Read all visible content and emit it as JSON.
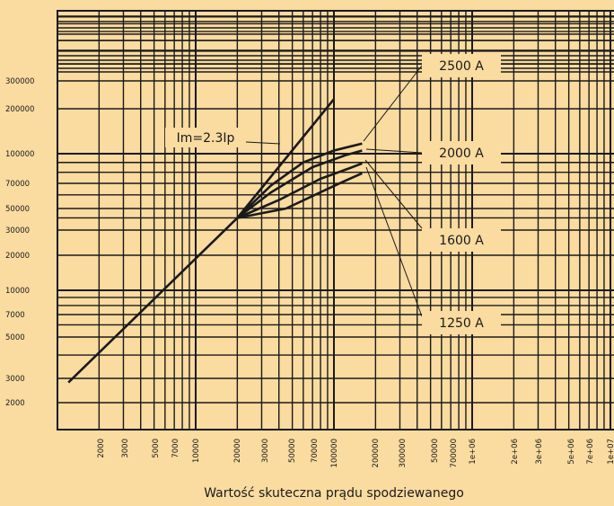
{
  "chart_data": {
    "type": "line",
    "title": "",
    "xlabel": "Wartość skuteczna prądu spodziewanego",
    "ylabel": "",
    "background_color": "#FADBA0",
    "line_color": "#1a1a1a",
    "grid": true,
    "x_ticks": [
      "2000",
      "3000",
      "5000",
      "7000",
      "10000",
      "20000",
      "30000",
      "50000",
      "70000",
      "100000",
      "200000",
      "300000",
      "50000",
      "700000",
      "1e+06",
      "2e+06",
      "3e+06",
      "5e+06",
      "7e+06",
      "1e+07"
    ],
    "y_ticks": [
      "300000",
      "200000",
      "100000",
      "70000",
      "50000",
      "30000",
      "20000",
      "10000",
      "7000",
      "5000",
      "3000",
      "2000"
    ],
    "series": [
      {
        "name": "Im=2.3Ip",
        "points": [
          [
            1200,
            2800
          ],
          [
            20000,
            40000
          ],
          [
            100000,
            230000
          ]
        ]
      },
      {
        "name": "2500 A",
        "points": [
          [
            20000,
            40000
          ],
          [
            35000,
            68000
          ],
          [
            60000,
            90000
          ],
          [
            100000,
            105000
          ],
          [
            160000,
            117000
          ]
        ]
      },
      {
        "name": "2000 A",
        "points": [
          [
            20000,
            40000
          ],
          [
            35000,
            62000
          ],
          [
            70000,
            85000
          ],
          [
            120000,
            98000
          ],
          [
            160000,
            105000
          ]
        ]
      },
      {
        "name": "1600 A",
        "points": [
          [
            20000,
            40000
          ],
          [
            40000,
            56000
          ],
          [
            80000,
            74000
          ],
          [
            130000,
            84000
          ],
          [
            160000,
            89000
          ]
        ]
      },
      {
        "name": "1250 A",
        "points": [
          [
            20000,
            40000
          ],
          [
            45000,
            50000
          ],
          [
            90000,
            65000
          ],
          [
            130000,
            74000
          ],
          [
            160000,
            79000
          ]
        ]
      }
    ],
    "annotations": [
      {
        "text": "Im=2.3Ip",
        "series": "Im=2.3Ip"
      },
      {
        "text": "2500 A",
        "series": "2500 A"
      },
      {
        "text": "2000 A",
        "series": "2000 A"
      },
      {
        "text": "1600 A",
        "series": "1600 A"
      },
      {
        "text": "1250 A",
        "series": "1250 A"
      }
    ]
  }
}
